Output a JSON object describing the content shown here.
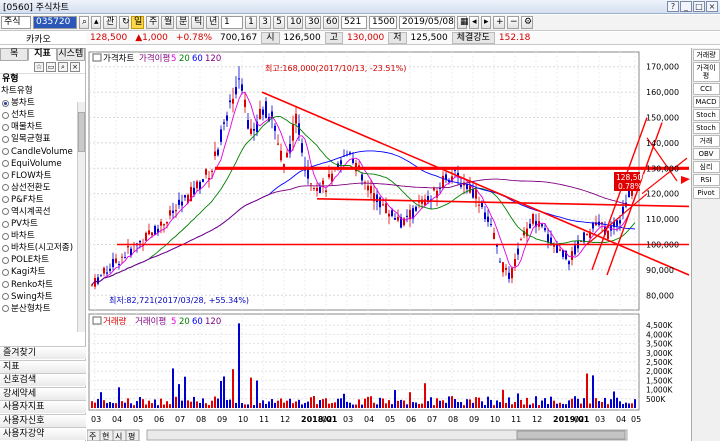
{
  "window": {
    "title": "[0560] 주식차트",
    "buttons": [
      "?",
      "_",
      "□",
      "×"
    ]
  },
  "toolbar": {
    "market": "주식",
    "code": "035720",
    "query_label": "관",
    "period_buttons": [
      {
        "label": "일",
        "selected": true
      },
      {
        "label": "주"
      },
      {
        "label": "월"
      },
      {
        "label": "분"
      },
      {
        "label": "틱"
      },
      {
        "label": "년"
      }
    ],
    "interval": "1",
    "minute_buttons": [
      "1",
      "3",
      "5",
      "10",
      "30",
      "60"
    ],
    "count": "521",
    "total": "1500",
    "date": "2019/05/08"
  },
  "infobar": {
    "price": "128,500",
    "change": "▲1,000",
    "change_pct": "+0.78%",
    "volume": "700,167",
    "open_label": "시",
    "open": "126,500",
    "high_label": "고",
    "high": "130,000",
    "low_label": "저",
    "low": "125,500",
    "strength_label": "체결강도",
    "strength": "152.18"
  },
  "stock_name": "카카오",
  "sidebar": {
    "tabs": [
      "목",
      "지표",
      "시스템"
    ],
    "tree_head": "유형",
    "section_label": "차트유형",
    "items": [
      {
        "label": "봉차트",
        "selected": true
      },
      {
        "label": "선차트"
      },
      {
        "label": "매물차트"
      },
      {
        "label": "일목균형표"
      },
      {
        "label": "CandleVolume"
      },
      {
        "label": "EquiVolume"
      },
      {
        "label": "FLOW차트"
      },
      {
        "label": "삼선전환도"
      },
      {
        "label": "P&F차트"
      },
      {
        "label": "역시계곡선"
      },
      {
        "label": "PV차트"
      },
      {
        "label": "바차트"
      },
      {
        "label": "바차트(시고저종)"
      },
      {
        "label": "POLE차트"
      },
      {
        "label": "Kagi차트"
      },
      {
        "label": "Renko차트"
      },
      {
        "label": "Swing차트"
      },
      {
        "label": "분산형차트"
      }
    ],
    "menus": [
      "즐겨찾기",
      "지표",
      "신호검색",
      "강세약세",
      "사용자지표",
      "사용자신호",
      "사용자강약"
    ]
  },
  "chart": {
    "price_legend": {
      "title": "가격차트",
      "ma_label": "가격이평",
      "ma": [
        "5",
        "20",
        "60",
        "120"
      ]
    },
    "high_note": "최고:168,000(2017/10/13, -23.51%)",
    "low_note": "최저:82,721(2017/03/28, +55.34%)",
    "price_ticks": [
      "170,000",
      "160,000",
      "150,000",
      "140,000",
      "130,000",
      "120,000",
      "110,000",
      "100,000",
      "90,000",
      "80,000"
    ],
    "last_price_tag": "128,500",
    "last_pct_tag": "0.78%",
    "volume_legend": {
      "title": "거래량",
      "ma_label": "거래이평",
      "ma": [
        "5",
        "20",
        "60",
        "120"
      ]
    },
    "volume_ticks": [
      "4,500K",
      "4,000K",
      "3,500K",
      "3,000K",
      "2,500K",
      "2,000K",
      "1,500K",
      "1,000K",
      "500K"
    ],
    "time_labels": [
      "03",
      "04",
      "05",
      "06",
      "07",
      "08",
      "09",
      "10",
      "11",
      "12",
      "2018/01",
      "02",
      "03",
      "04",
      "05",
      "06",
      "07",
      "08",
      "09",
      "10",
      "11",
      "12",
      "2019/01",
      "02",
      "03",
      "04",
      "05"
    ],
    "bottom_tabs": [
      "주",
      "현",
      "시",
      "평"
    ],
    "colors": {
      "up": "#e00000",
      "down": "#0000d0",
      "ma5": "#e000e0",
      "ma20": "#008000",
      "ma60": "#0000ff",
      "ma120": "#800080",
      "trend": "#ff0000"
    }
  },
  "right_panel": [
    "거래량",
    "가격이평",
    "CCI",
    "MACD",
    "Stoch",
    "Stoch",
    "거래",
    "OBV",
    "심리",
    "RSI",
    "Pivot"
  ]
}
